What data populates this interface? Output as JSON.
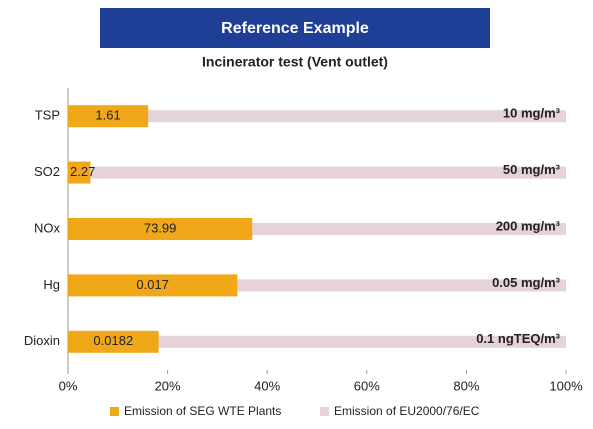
{
  "chart_data": {
    "type": "bar",
    "orientation": "horizontal",
    "title": "Reference Example",
    "subtitle": "Incinerator test (Vent outlet)",
    "categories": [
      "TSP",
      "SO2",
      "NOx",
      "Hg",
      "Dioxin"
    ],
    "series": [
      {
        "name": "Emission of SEG WTE Plants",
        "color": "#f0a818",
        "values": [
          16.1,
          4.5,
          37,
          34,
          18.2
        ]
      },
      {
        "name": "Emission of EU2000/76/EC",
        "color": "#e6d2da",
        "values": [
          100,
          100,
          100,
          100,
          100
        ]
      }
    ],
    "emissions": [
      "1.61",
      "2.27",
      "73.99",
      "0.017",
      "0.0182"
    ],
    "limits": [
      "10 mg/m³",
      "50 mg/m³",
      "200 mg/m³",
      "0.05 mg/m³",
      "0.1 ngTEQ/m³"
    ],
    "xlim": [
      0,
      100
    ],
    "xticks": [
      {
        "value": 0,
        "label": "0%"
      },
      {
        "value": 20,
        "label": "20%"
      },
      {
        "value": 40,
        "label": "40%"
      },
      {
        "value": 60,
        "label": "60%"
      },
      {
        "value": 80,
        "label": "80%"
      },
      {
        "value": 100,
        "label": "100%"
      }
    ]
  }
}
